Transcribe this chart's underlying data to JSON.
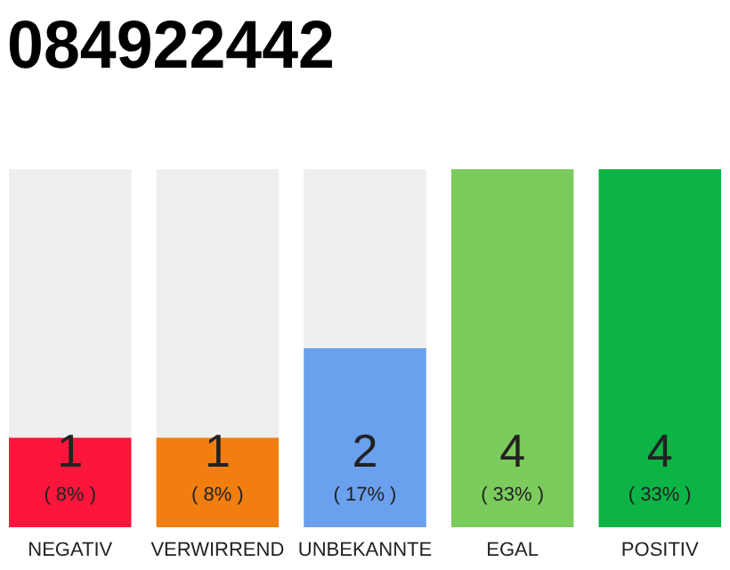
{
  "chart_data": {
    "type": "bar",
    "title": "084922442",
    "categories": [
      "NEGATIV",
      "VERWIRREND",
      "UNBEKANNTE",
      "EGAL",
      "POSITIV"
    ],
    "values": [
      1,
      1,
      2,
      4,
      4
    ],
    "colors": [
      "#fc163b",
      "#f17e0f",
      "#6aa0ee",
      "#7ccb5d",
      "#0cb345"
    ],
    "ylim": [
      0,
      4
    ],
    "data_labels": true,
    "annotations": [
      "( 8% )",
      "( 8% )",
      "( 17% )",
      "( 33% )",
      "( 33% )"
    ]
  }
}
